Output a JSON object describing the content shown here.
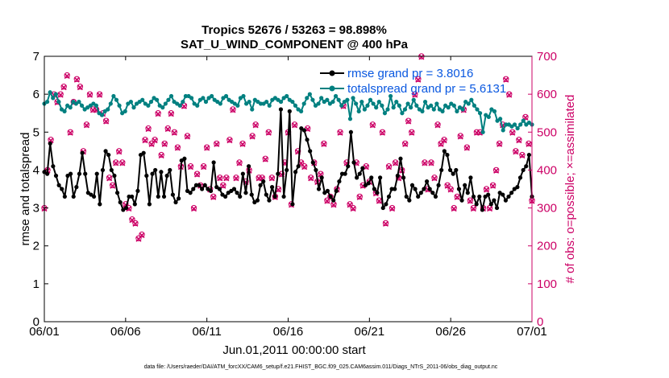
{
  "chart_data": {
    "type": "line",
    "title_line1": "Tropics 52676 / 53263 = 98.898%",
    "title_line2": "SAT_U_WIND_COMPONENT @ 400 hPa",
    "xlabel": "Jun.01,2011 00:00:00 start",
    "ylabel_left": "rmse and totalspread",
    "ylabel_right": "# of obs: o=possible; ×=assimilated",
    "footnote": "data file: /Users/raeder/DAI/ATM_forcXX/CAM6_setup/f.e21.FHIST_BGC.f09_025.CAM6assim.011/Diags_NTrS_2011-06/obs_diag_output.nc",
    "xlim": [
      0,
      30
    ],
    "ylim_left": [
      0,
      7
    ],
    "ylim_right": [
      0,
      700
    ],
    "x_ticks": [
      {
        "v": 0,
        "label": "06/01"
      },
      {
        "v": 5,
        "label": "06/06"
      },
      {
        "v": 10,
        "label": "06/11"
      },
      {
        "v": 15,
        "label": "06/16"
      },
      {
        "v": 20,
        "label": "06/21"
      },
      {
        "v": 25,
        "label": "06/26"
      },
      {
        "v": 30,
        "label": "07/01"
      }
    ],
    "y_ticks_left": [
      0,
      1,
      2,
      3,
      4,
      5,
      6,
      7
    ],
    "y_ticks_right": [
      0,
      100,
      200,
      300,
      400,
      500,
      600,
      700
    ],
    "colors": {
      "rmse": "#000000",
      "spread": "#008080",
      "obs": "#cc0066",
      "legend_text": "#0a58e0"
    },
    "series": [
      {
        "name": "rmse",
        "legend": "rmse grand pr = 3.8016",
        "axis": "left",
        "values": [
          3.95,
          3.9,
          4.7,
          4.1,
          3.85,
          3.6,
          3.5,
          3.3,
          3.85,
          3.9,
          3.3,
          3.55,
          3.9,
          4.45,
          3.9,
          3.4,
          3.35,
          3.3,
          3.9,
          3.1,
          4.0,
          4.5,
          4.4,
          4.0,
          3.85,
          3.4,
          3.15,
          2.95,
          3.0,
          3.3,
          3.3,
          3.1,
          3.45,
          4.4,
          4.45,
          3.85,
          3.1,
          3.9,
          4.0,
          3.3,
          3.95,
          3.3,
          3.85,
          4.0,
          3.35,
          3.15,
          3.25,
          4.25,
          4.3,
          3.45,
          3.4,
          3.5,
          3.6,
          3.6,
          3.5,
          3.6,
          3.5,
          3.45,
          4.2,
          3.55,
          3.5,
          3.35,
          3.3,
          3.4,
          3.45,
          3.5,
          3.4,
          3.3,
          3.9,
          3.4,
          4.1,
          3.35,
          3.15,
          3.2,
          3.6,
          3.7,
          3.35,
          3.2,
          3.55,
          3.3,
          3.9,
          5.6,
          3.3,
          4.0,
          5.55,
          3.1,
          3.95,
          4.1,
          5.1,
          5.05,
          4.8,
          4.5,
          4.2,
          4.0,
          3.5,
          3.8,
          3.4,
          3.45,
          3.3,
          3.2,
          3.45,
          3.7,
          3.9,
          3.9,
          4.1,
          5.0,
          4.2,
          3.8,
          3.9,
          4.05,
          3.6,
          3.65,
          3.8,
          3.5,
          3.4,
          3.8,
          3.0,
          3.1,
          3.3,
          3.5,
          3.5,
          3.85,
          4.3,
          3.8,
          3.3,
          3.2,
          3.6,
          3.5,
          3.3,
          3.4,
          3.5,
          3.7,
          3.5,
          3.4,
          3.3,
          3.6,
          4.0,
          4.5,
          4.4,
          4.0,
          3.9,
          4.0,
          3.5,
          3.2,
          3.6,
          3.4,
          3.8,
          3.3,
          3.1,
          3.3,
          2.95,
          3.3,
          3.35,
          3.1,
          3.2,
          3.0,
          3.4,
          3.35,
          3.2,
          3.3,
          3.4,
          3.5,
          3.55,
          3.8,
          4.0,
          4.1,
          4.4,
          3.3
        ]
      },
      {
        "name": "totalspread",
        "legend": "totalspread grand pr = 5.6131",
        "axis": "left",
        "values": [
          5.75,
          5.8,
          6.05,
          5.9,
          6.0,
          5.8,
          5.6,
          5.55,
          5.7,
          5.65,
          5.8,
          5.75,
          5.8,
          5.7,
          5.6,
          5.65,
          5.7,
          5.75,
          5.7,
          5.5,
          5.45,
          5.55,
          5.6,
          5.75,
          5.95,
          5.85,
          5.7,
          5.5,
          5.55,
          5.75,
          5.8,
          5.65,
          5.75,
          5.8,
          5.85,
          5.75,
          5.7,
          5.8,
          5.9,
          5.85,
          5.7,
          5.65,
          5.75,
          5.85,
          5.95,
          5.8,
          5.75,
          5.7,
          5.8,
          5.95,
          5.95,
          5.9,
          5.75,
          5.7,
          5.85,
          5.9,
          5.8,
          5.9,
          5.95,
          5.85,
          5.8,
          5.75,
          5.9,
          5.95,
          5.85,
          5.8,
          5.75,
          5.7,
          5.9,
          5.95,
          5.75,
          5.8,
          5.6,
          5.85,
          5.8,
          5.75,
          5.75,
          5.8,
          5.7,
          5.85,
          5.9,
          5.85,
          5.8,
          5.9,
          5.95,
          5.85,
          5.8,
          5.7,
          5.6,
          5.55,
          5.75,
          5.9,
          6.0,
          5.85,
          5.7,
          5.75,
          5.9,
          5.8,
          5.85,
          5.75,
          5.8,
          5.95,
          5.85,
          5.7,
          5.8,
          5.85,
          5.35,
          5.9,
          5.75,
          5.55,
          5.8,
          5.6,
          5.7,
          5.85,
          5.75,
          5.65,
          5.8,
          5.7,
          5.5,
          5.6,
          5.95,
          5.65,
          5.8,
          5.7,
          5.5,
          5.6,
          5.75,
          5.65,
          5.85,
          5.7,
          5.6,
          5.55,
          5.8,
          5.65,
          5.7,
          5.6,
          5.75,
          5.6,
          5.55,
          5.7,
          5.65,
          5.75,
          5.7,
          5.55,
          5.65,
          5.6,
          5.8,
          5.75,
          5.85,
          5.7,
          5.6,
          5.5,
          5.0,
          5.45,
          5.4,
          5.6,
          5.55,
          5.3,
          5.35,
          5.05,
          5.2,
          5.2,
          5.15,
          5.2,
          5.1,
          5.2,
          5.3,
          5.2,
          5.25,
          5.2
        ]
      }
    ],
    "obs_possible": [
      300,
      400,
      480,
      600,
      580,
      600,
      620,
      650,
      500,
      580,
      640,
      620,
      450,
      520,
      600,
      560,
      560,
      600,
      550,
      530,
      380,
      360,
      420,
      450,
      420,
      310,
      300,
      270,
      260,
      220,
      230,
      480,
      510,
      470,
      480,
      550,
      440,
      470,
      510,
      550,
      500,
      460,
      410,
      570,
      490,
      410,
      300,
      390,
      360,
      410,
      460,
      350,
      330,
      470,
      380,
      360,
      380,
      480,
      560,
      380,
      420,
      470,
      370,
      400,
      490,
      520,
      380,
      380,
      430,
      500,
      380,
      330,
      350,
      390,
      420,
      500,
      310,
      520,
      450,
      420,
      410,
      510,
      380,
      420,
      370,
      390,
      470,
      320,
      330,
      310,
      350,
      500,
      570,
      420,
      310,
      300,
      420,
      330,
      360,
      410,
      370,
      520,
      340,
      320,
      500,
      260,
      410,
      300,
      420,
      380,
      400,
      470,
      530,
      500,
      600,
      640,
      700,
      420,
      350,
      420,
      380,
      520,
      470,
      480,
      360,
      350,
      300,
      330,
      490,
      560,
      460,
      320,
      300,
      500,
      500,
      300,
      350,
      300,
      360,
      400,
      470,
      520,
      640,
      600,
      500,
      450,
      480,
      440,
      540,
      470,
      320
    ],
    "obs_assimilated": [
      298,
      398,
      478,
      598,
      578,
      598,
      618,
      648,
      498,
      578,
      638,
      618,
      448,
      518,
      598,
      558,
      558,
      598,
      548,
      528,
      378,
      358,
      418,
      448,
      418,
      308,
      298,
      268,
      258,
      218,
      228,
      478,
      508,
      468,
      478,
      548,
      438,
      468,
      508,
      548,
      498,
      458,
      408,
      568,
      488,
      408,
      298,
      388,
      358,
      408,
      458,
      348,
      328,
      468,
      378,
      358,
      378,
      478,
      558,
      378,
      418,
      468,
      368,
      398,
      488,
      518,
      378,
      378,
      428,
      498,
      378,
      328,
      348,
      388,
      418,
      498,
      308,
      518,
      448,
      418,
      408,
      508,
      378,
      418,
      368,
      388,
      468,
      318,
      328,
      308,
      348,
      498,
      568,
      418,
      308,
      298,
      418,
      328,
      358,
      408,
      368,
      518,
      338,
      318,
      498,
      258,
      408,
      298,
      418,
      378,
      398,
      468,
      528,
      498,
      598,
      638,
      698,
      418,
      348,
      418,
      378,
      518,
      468,
      478,
      358,
      348,
      298,
      328,
      488,
      558,
      458,
      318,
      298,
      498,
      498,
      298,
      348,
      298,
      358,
      398,
      468,
      518,
      638,
      598,
      498,
      448,
      478,
      438,
      538,
      468,
      318
    ]
  }
}
